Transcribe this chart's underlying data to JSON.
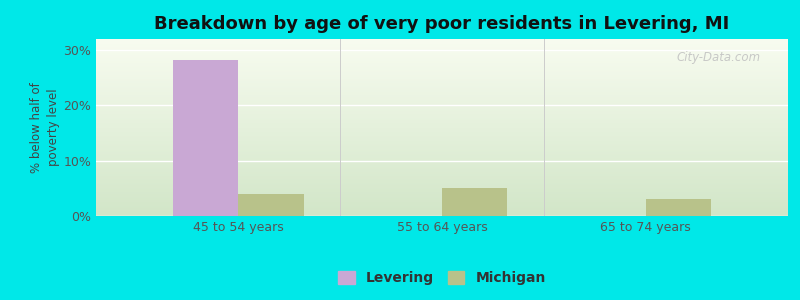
{
  "title": "Breakdown by age of very poor residents in Levering, MI",
  "ylabel": "% below half of\npoverty level",
  "categories": [
    "45 to 54 years",
    "55 to 64 years",
    "65 to 74 years"
  ],
  "levering_values": [
    28.2,
    0,
    0
  ],
  "michigan_values": [
    4.0,
    5.0,
    3.0
  ],
  "levering_color": "#c9a8d4",
  "michigan_color": "#b8c28a",
  "outer_bg": "#00e8e8",
  "plot_bg_top": "#f5f8ee",
  "plot_bg_bottom": "#ddeedd",
  "ylim": [
    0,
    32
  ],
  "yticks": [
    0,
    10,
    20,
    30
  ],
  "ytick_labels": [
    "0%",
    "10%",
    "20%",
    "30%"
  ],
  "bar_width": 0.32,
  "title_fontsize": 13,
  "legend_labels": [
    "Levering",
    "Michigan"
  ],
  "watermark": "City-Data.com"
}
